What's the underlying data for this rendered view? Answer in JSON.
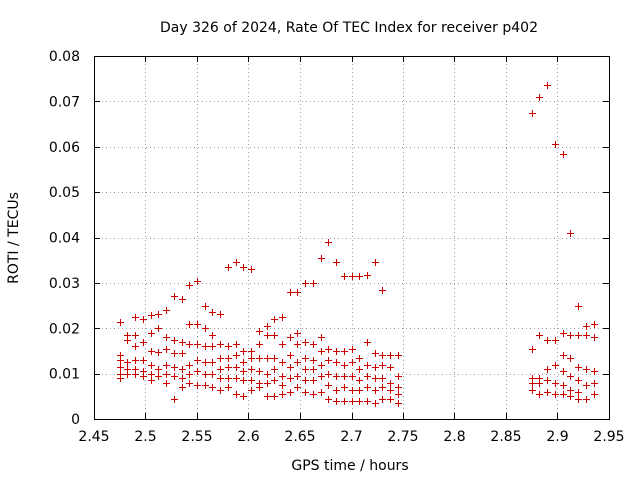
{
  "chart_data": {
    "type": "scatter",
    "title": "Day 326 of 2024, Rate Of TEC Index for receiver p402",
    "xlabel": "GPS time / hours",
    "ylabel": "ROTI / TECUs",
    "xlim": [
      2.45,
      2.95
    ],
    "ylim": [
      0,
      0.08
    ],
    "x_ticks": [
      2.45,
      2.5,
      2.55,
      2.6,
      2.65,
      2.7,
      2.75,
      2.8,
      2.85,
      2.9,
      2.95
    ],
    "x_tick_labels": [
      "2.45",
      "2.5",
      "2.55",
      "2.6",
      "2.65",
      "2.7",
      "2.75",
      "2.8",
      "2.85",
      "2.9",
      "2.95"
    ],
    "y_ticks": [
      0,
      0.01,
      0.02,
      0.03,
      0.04,
      0.05,
      0.06,
      0.07,
      0.08
    ],
    "y_tick_labels": [
      "0",
      "0.01",
      "0.02",
      "0.03",
      "0.04",
      "0.05",
      "0.06",
      "0.07",
      "0.08"
    ],
    "grid": true,
    "marker": "+",
    "color": "#cc0000",
    "series": [
      {
        "name": "ROTI",
        "points": [
          [
            2.475,
            0.0213
          ],
          [
            2.475,
            0.014
          ],
          [
            2.475,
            0.013
          ],
          [
            2.475,
            0.0115
          ],
          [
            2.475,
            0.01
          ],
          [
            2.475,
            0.009
          ],
          [
            2.4825,
            0.0185
          ],
          [
            2.4825,
            0.0175
          ],
          [
            2.4825,
            0.0125
          ],
          [
            2.4825,
            0.011
          ],
          [
            2.4825,
            0.01
          ],
          [
            2.49,
            0.0225
          ],
          [
            2.49,
            0.0185
          ],
          [
            2.49,
            0.016
          ],
          [
            2.49,
            0.013
          ],
          [
            2.49,
            0.011
          ],
          [
            2.49,
            0.01
          ],
          [
            2.4975,
            0.022
          ],
          [
            2.4975,
            0.017
          ],
          [
            2.4975,
            0.013
          ],
          [
            2.4975,
            0.0105
          ],
          [
            2.4975,
            0.0095
          ],
          [
            2.505,
            0.023
          ],
          [
            2.505,
            0.019
          ],
          [
            2.505,
            0.015
          ],
          [
            2.505,
            0.012
          ],
          [
            2.505,
            0.01
          ],
          [
            2.505,
            0.0085
          ],
          [
            2.5125,
            0.0232
          ],
          [
            2.5125,
            0.02
          ],
          [
            2.5125,
            0.0148
          ],
          [
            2.5125,
            0.011
          ],
          [
            2.5125,
            0.0095
          ],
          [
            2.52,
            0.024
          ],
          [
            2.52,
            0.018
          ],
          [
            2.52,
            0.0155
          ],
          [
            2.52,
            0.012
          ],
          [
            2.52,
            0.01
          ],
          [
            2.52,
            0.008
          ],
          [
            2.5275,
            0.027
          ],
          [
            2.5275,
            0.0175
          ],
          [
            2.5275,
            0.0145
          ],
          [
            2.5275,
            0.0115
          ],
          [
            2.5275,
            0.0095
          ],
          [
            2.5275,
            0.0045
          ],
          [
            2.535,
            0.0265
          ],
          [
            2.535,
            0.017
          ],
          [
            2.535,
            0.0145
          ],
          [
            2.535,
            0.011
          ],
          [
            2.535,
            0.009
          ],
          [
            2.535,
            0.007
          ],
          [
            2.5425,
            0.0295
          ],
          [
            2.5425,
            0.021
          ],
          [
            2.5425,
            0.0165
          ],
          [
            2.5425,
            0.012
          ],
          [
            2.5425,
            0.01
          ],
          [
            2.5425,
            0.008
          ],
          [
            2.55,
            0.0305
          ],
          [
            2.55,
            0.021
          ],
          [
            2.55,
            0.0165
          ],
          [
            2.55,
            0.013
          ],
          [
            2.55,
            0.0105
          ],
          [
            2.55,
            0.0075
          ],
          [
            2.5575,
            0.025
          ],
          [
            2.5575,
            0.02
          ],
          [
            2.5575,
            0.016
          ],
          [
            2.5575,
            0.0125
          ],
          [
            2.5575,
            0.01
          ],
          [
            2.5575,
            0.0075
          ],
          [
            2.565,
            0.0235
          ],
          [
            2.565,
            0.0185
          ],
          [
            2.565,
            0.016
          ],
          [
            2.565,
            0.0125
          ],
          [
            2.565,
            0.01
          ],
          [
            2.565,
            0.007
          ],
          [
            2.5725,
            0.0232
          ],
          [
            2.5725,
            0.0165
          ],
          [
            2.5725,
            0.0135
          ],
          [
            2.5725,
            0.011
          ],
          [
            2.5725,
            0.009
          ],
          [
            2.5725,
            0.0065
          ],
          [
            2.58,
            0.0335
          ],
          [
            2.58,
            0.016
          ],
          [
            2.58,
            0.0135
          ],
          [
            2.58,
            0.0115
          ],
          [
            2.58,
            0.009
          ],
          [
            2.58,
            0.007
          ],
          [
            2.5875,
            0.0345
          ],
          [
            2.5875,
            0.0165
          ],
          [
            2.5875,
            0.014
          ],
          [
            2.5875,
            0.0115
          ],
          [
            2.5875,
            0.009
          ],
          [
            2.5875,
            0.0055
          ],
          [
            2.595,
            0.0335
          ],
          [
            2.595,
            0.015
          ],
          [
            2.595,
            0.0125
          ],
          [
            2.595,
            0.0105
          ],
          [
            2.595,
            0.0085
          ],
          [
            2.595,
            0.005
          ],
          [
            2.6025,
            0.033
          ],
          [
            2.6025,
            0.015
          ],
          [
            2.6025,
            0.0135
          ],
          [
            2.6025,
            0.011
          ],
          [
            2.6025,
            0.0085
          ],
          [
            2.6025,
            0.0065
          ],
          [
            2.61,
            0.0195
          ],
          [
            2.61,
            0.0165
          ],
          [
            2.61,
            0.0135
          ],
          [
            2.61,
            0.0105
          ],
          [
            2.61,
            0.008
          ],
          [
            2.61,
            0.007
          ],
          [
            2.6175,
            0.0205
          ],
          [
            2.6175,
            0.0185
          ],
          [
            2.6175,
            0.0135
          ],
          [
            2.6175,
            0.01
          ],
          [
            2.6175,
            0.008
          ],
          [
            2.6175,
            0.005
          ],
          [
            2.625,
            0.022
          ],
          [
            2.625,
            0.0185
          ],
          [
            2.625,
            0.0135
          ],
          [
            2.625,
            0.011
          ],
          [
            2.625,
            0.0085
          ],
          [
            2.625,
            0.005
          ],
          [
            2.6325,
            0.0225
          ],
          [
            2.6325,
            0.0165
          ],
          [
            2.6325,
            0.0125
          ],
          [
            2.6325,
            0.0095
          ],
          [
            2.6325,
            0.0075
          ],
          [
            2.6325,
            0.0055
          ],
          [
            2.64,
            0.028
          ],
          [
            2.64,
            0.018
          ],
          [
            2.64,
            0.014
          ],
          [
            2.64,
            0.0115
          ],
          [
            2.64,
            0.009
          ],
          [
            2.64,
            0.006
          ],
          [
            2.6475,
            0.028
          ],
          [
            2.6475,
            0.019
          ],
          [
            2.6475,
            0.0165
          ],
          [
            2.6475,
            0.0125
          ],
          [
            2.6475,
            0.0095
          ],
          [
            2.6475,
            0.007
          ],
          [
            2.655,
            0.03
          ],
          [
            2.655,
            0.017
          ],
          [
            2.655,
            0.0135
          ],
          [
            2.655,
            0.011
          ],
          [
            2.655,
            0.0085
          ],
          [
            2.655,
            0.006
          ],
          [
            2.6625,
            0.03
          ],
          [
            2.6625,
            0.0165
          ],
          [
            2.6625,
            0.013
          ],
          [
            2.6625,
            0.011
          ],
          [
            2.6625,
            0.0085
          ],
          [
            2.6625,
            0.0055
          ],
          [
            2.67,
            0.0355
          ],
          [
            2.67,
            0.018
          ],
          [
            2.67,
            0.015
          ],
          [
            2.67,
            0.012
          ],
          [
            2.67,
            0.0095
          ],
          [
            2.67,
            0.006
          ],
          [
            2.6775,
            0.039
          ],
          [
            2.6775,
            0.0155
          ],
          [
            2.6775,
            0.013
          ],
          [
            2.6775,
            0.01
          ],
          [
            2.6775,
            0.0075
          ],
          [
            2.6775,
            0.0045
          ],
          [
            2.685,
            0.0345
          ],
          [
            2.685,
            0.015
          ],
          [
            2.685,
            0.0125
          ],
          [
            2.685,
            0.0095
          ],
          [
            2.685,
            0.0065
          ],
          [
            2.685,
            0.004
          ],
          [
            2.6925,
            0.0315
          ],
          [
            2.6925,
            0.015
          ],
          [
            2.6925,
            0.012
          ],
          [
            2.6925,
            0.0095
          ],
          [
            2.6925,
            0.007
          ],
          [
            2.6925,
            0.004
          ],
          [
            2.7,
            0.0315
          ],
          [
            2.7,
            0.0155
          ],
          [
            2.7,
            0.0125
          ],
          [
            2.7,
            0.0095
          ],
          [
            2.7,
            0.0065
          ],
          [
            2.7,
            0.004
          ],
          [
            2.7075,
            0.0315
          ],
          [
            2.7075,
            0.0135
          ],
          [
            2.7075,
            0.011
          ],
          [
            2.7075,
            0.0085
          ],
          [
            2.7075,
            0.0065
          ],
          [
            2.7075,
            0.004
          ],
          [
            2.715,
            0.0318
          ],
          [
            2.715,
            0.017
          ],
          [
            2.715,
            0.012
          ],
          [
            2.715,
            0.0095
          ],
          [
            2.715,
            0.007
          ],
          [
            2.715,
            0.004
          ],
          [
            2.7225,
            0.0345
          ],
          [
            2.7225,
            0.0145
          ],
          [
            2.7225,
            0.0115
          ],
          [
            2.7225,
            0.009
          ],
          [
            2.7225,
            0.0065
          ],
          [
            2.7225,
            0.0035
          ],
          [
            2.73,
            0.0285
          ],
          [
            2.73,
            0.014
          ],
          [
            2.73,
            0.012
          ],
          [
            2.73,
            0.009
          ],
          [
            2.73,
            0.007
          ],
          [
            2.73,
            0.0045
          ],
          [
            2.7375,
            0.014
          ],
          [
            2.7375,
            0.0115
          ],
          [
            2.7375,
            0.008
          ],
          [
            2.7375,
            0.0065
          ],
          [
            2.7375,
            0.0045
          ],
          [
            2.745,
            0.014
          ],
          [
            2.745,
            0.0095
          ],
          [
            2.745,
            0.007
          ],
          [
            2.745,
            0.0055
          ],
          [
            2.745,
            0.0035
          ],
          [
            2.875,
            0.0675
          ],
          [
            2.875,
            0.0155
          ],
          [
            2.875,
            0.009
          ],
          [
            2.875,
            0.008
          ],
          [
            2.875,
            0.0065
          ],
          [
            2.8825,
            0.071
          ],
          [
            2.8825,
            0.0185
          ],
          [
            2.8825,
            0.009
          ],
          [
            2.8825,
            0.008
          ],
          [
            2.8825,
            0.0055
          ],
          [
            2.89,
            0.0735
          ],
          [
            2.89,
            0.0175
          ],
          [
            2.89,
            0.011
          ],
          [
            2.89,
            0.0085
          ],
          [
            2.89,
            0.006
          ],
          [
            2.8975,
            0.0605
          ],
          [
            2.8975,
            0.0175
          ],
          [
            2.8975,
            0.012
          ],
          [
            2.8975,
            0.008
          ],
          [
            2.8975,
            0.0055
          ],
          [
            2.905,
            0.0585
          ],
          [
            2.905,
            0.019
          ],
          [
            2.905,
            0.014
          ],
          [
            2.905,
            0.0105
          ],
          [
            2.905,
            0.0075
          ],
          [
            2.905,
            0.0055
          ],
          [
            2.9125,
            0.041
          ],
          [
            2.9125,
            0.0185
          ],
          [
            2.9125,
            0.0135
          ],
          [
            2.9125,
            0.0095
          ],
          [
            2.9125,
            0.0065
          ],
          [
            2.9125,
            0.005
          ],
          [
            2.92,
            0.025
          ],
          [
            2.92,
            0.0185
          ],
          [
            2.92,
            0.0115
          ],
          [
            2.92,
            0.0085
          ],
          [
            2.92,
            0.006
          ],
          [
            2.92,
            0.0045
          ],
          [
            2.9275,
            0.0205
          ],
          [
            2.9275,
            0.0185
          ],
          [
            2.9275,
            0.011
          ],
          [
            2.9275,
            0.0075
          ],
          [
            2.9275,
            0.0045
          ],
          [
            2.935,
            0.021
          ],
          [
            2.935,
            0.018
          ],
          [
            2.935,
            0.0105
          ],
          [
            2.935,
            0.008
          ],
          [
            2.935,
            0.0055
          ]
        ]
      }
    ]
  }
}
